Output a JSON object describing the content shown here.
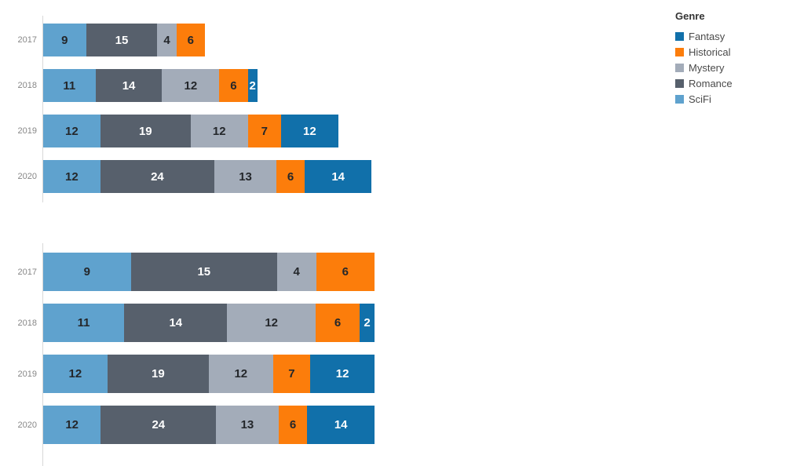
{
  "legend": {
    "title": "Genre",
    "items": [
      {
        "label": "Fantasy",
        "color": "#1170aa"
      },
      {
        "label": "Historical",
        "color": "#fc7d0b"
      },
      {
        "label": "Mystery",
        "color": "#a3acb9"
      },
      {
        "label": "Romance",
        "color": "#57606c"
      },
      {
        "label": "SciFi",
        "color": "#5fa2ce"
      }
    ]
  },
  "genre_colors": {
    "Fantasy": "#1170aa",
    "Historical": "#fc7d0b",
    "Mystery": "#a3acb9",
    "Romance": "#57606c",
    "SciFi": "#5fa2ce"
  },
  "label_text_colors": {
    "Fantasy": "#ffffff",
    "Historical": "#24272b",
    "Mystery": "#24272b",
    "Romance": "#ffffff",
    "SciFi": "#24272b"
  },
  "stack_order": [
    "SciFi",
    "Romance",
    "Mystery",
    "Historical",
    "Fantasy"
  ],
  "chart_data": [
    {
      "type": "bar",
      "orientation": "horizontal",
      "stacking": "stacked",
      "title": "",
      "xlabel": "",
      "ylabel": "",
      "categories": [
        "2017",
        "2018",
        "2019",
        "2020"
      ],
      "series": [
        {
          "name": "SciFi",
          "values": [
            9,
            11,
            12,
            12
          ]
        },
        {
          "name": "Romance",
          "values": [
            15,
            14,
            19,
            24
          ]
        },
        {
          "name": "Mystery",
          "values": [
            4,
            12,
            12,
            13
          ]
        },
        {
          "name": "Historical",
          "values": [
            6,
            6,
            7,
            6
          ]
        },
        {
          "name": "Fantasy",
          "values": [
            0,
            2,
            12,
            14
          ]
        }
      ],
      "totals": [
        34,
        45,
        62,
        69
      ],
      "xlim": [
        0,
        70
      ],
      "grid": false,
      "data_labels": true,
      "legend_position": "right"
    },
    {
      "type": "bar",
      "orientation": "horizontal",
      "stacking": "percent",
      "title": "",
      "xlabel": "",
      "ylabel": "",
      "categories": [
        "2017",
        "2018",
        "2019",
        "2020"
      ],
      "series": [
        {
          "name": "SciFi",
          "values": [
            9,
            11,
            12,
            12
          ]
        },
        {
          "name": "Romance",
          "values": [
            15,
            14,
            19,
            24
          ]
        },
        {
          "name": "Mystery",
          "values": [
            4,
            12,
            12,
            13
          ]
        },
        {
          "name": "Historical",
          "values": [
            6,
            6,
            7,
            6
          ]
        },
        {
          "name": "Fantasy",
          "values": [
            0,
            2,
            12,
            14
          ]
        }
      ],
      "totals": [
        34,
        45,
        62,
        69
      ],
      "xlim": [
        0,
        1
      ],
      "grid": false,
      "data_labels": true,
      "legend_position": "right"
    }
  ]
}
